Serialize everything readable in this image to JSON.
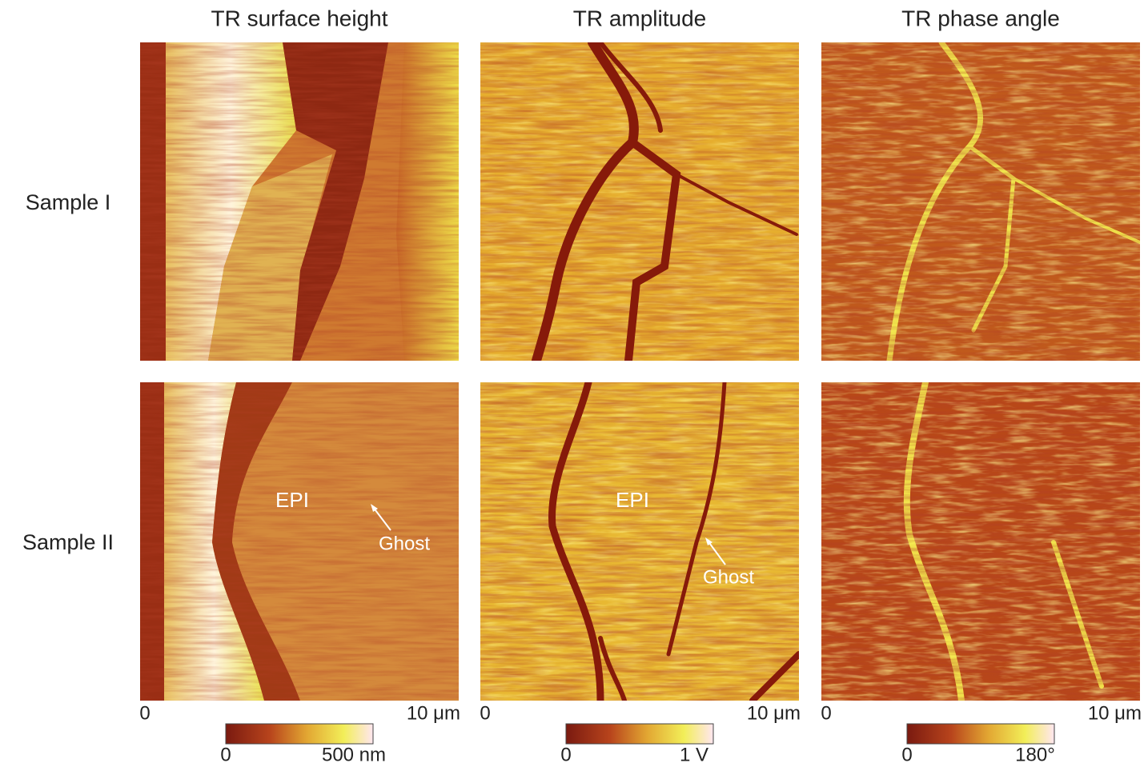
{
  "columns": [
    {
      "title": "TR surface height",
      "axis_start": "0",
      "axis_end": "10 μm",
      "colorbar_min": "0",
      "colorbar_max": "500 nm"
    },
    {
      "title": "TR amplitude",
      "axis_start": "0",
      "axis_end": "10 μm",
      "colorbar_min": "0",
      "colorbar_max": "1 V"
    },
    {
      "title": "TR phase angle",
      "axis_start": "0",
      "axis_end": "10 μm",
      "colorbar_min": "0",
      "colorbar_max": "180°"
    }
  ],
  "rows": [
    {
      "label": "Sample I"
    },
    {
      "label": "Sample II",
      "annotations": [
        {
          "region": "EPI",
          "feature": "Ghost"
        },
        {
          "region": "EPI",
          "feature": "Ghost"
        }
      ]
    }
  ]
}
